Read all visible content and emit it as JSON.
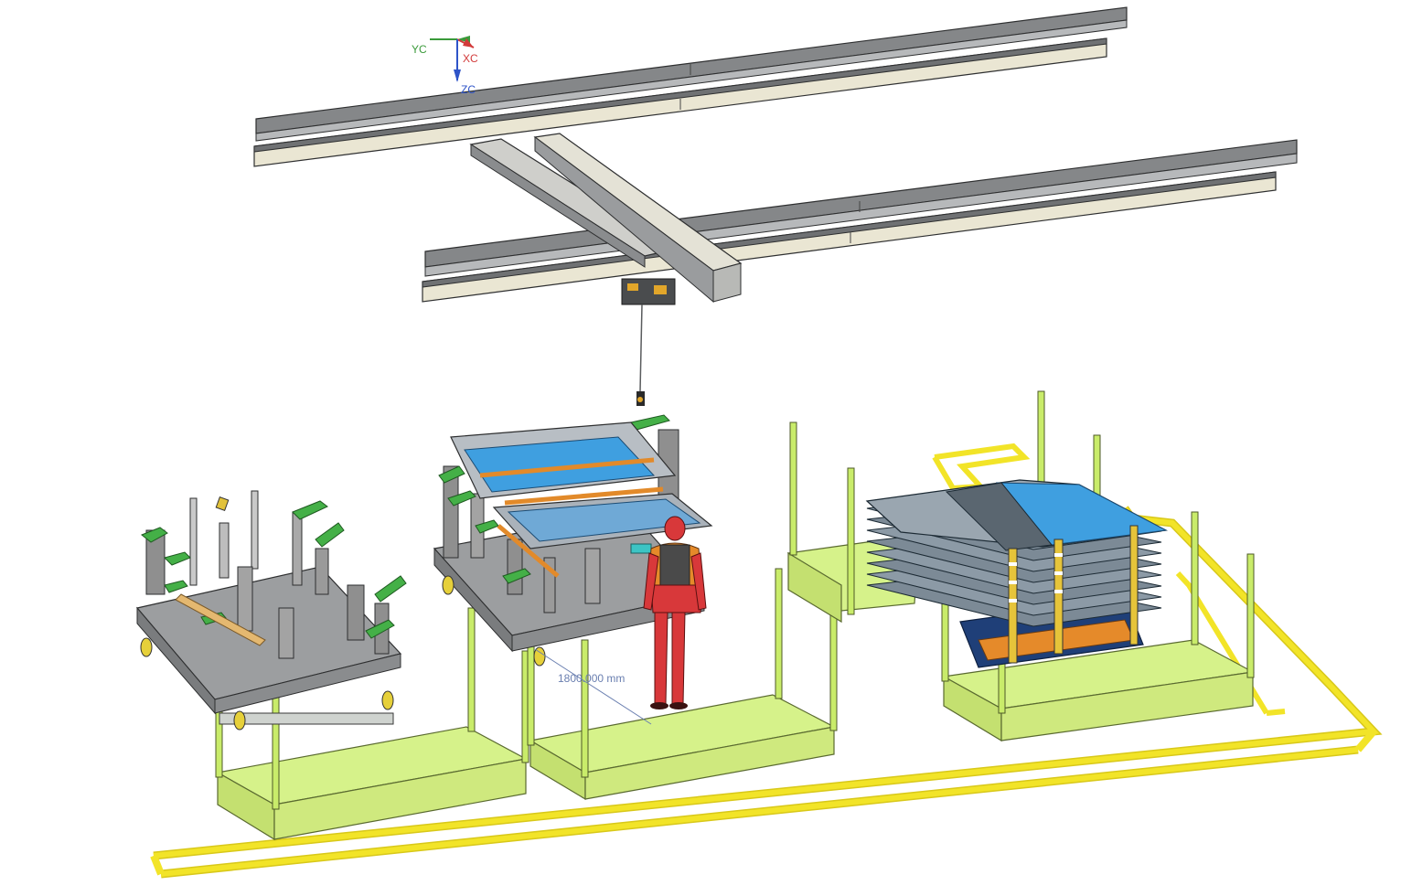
{
  "axes": {
    "x_label": "XC",
    "y_label": "YC",
    "z_label": "ZC",
    "x_color": "#d23a3a",
    "y_color": "#3a9a3a",
    "z_color": "#2e54c8"
  },
  "dimension": {
    "text": "1800.000 mm",
    "color": "#6a7fb0"
  },
  "colors": {
    "rail_dark": "#7c7e80",
    "rail_light": "#e9e5d2",
    "floor_zone": "#d6f28a",
    "post": "#c9ec6a",
    "safety_line": "#f0e020",
    "fixture_table": "#9a9c9e",
    "fixture_clamp": "#44b047",
    "panel_blue": "#3f9fe0",
    "panel_grey": "#8c949c",
    "operator_body": "#d8383a",
    "operator_vest": "#e58a2a"
  }
}
